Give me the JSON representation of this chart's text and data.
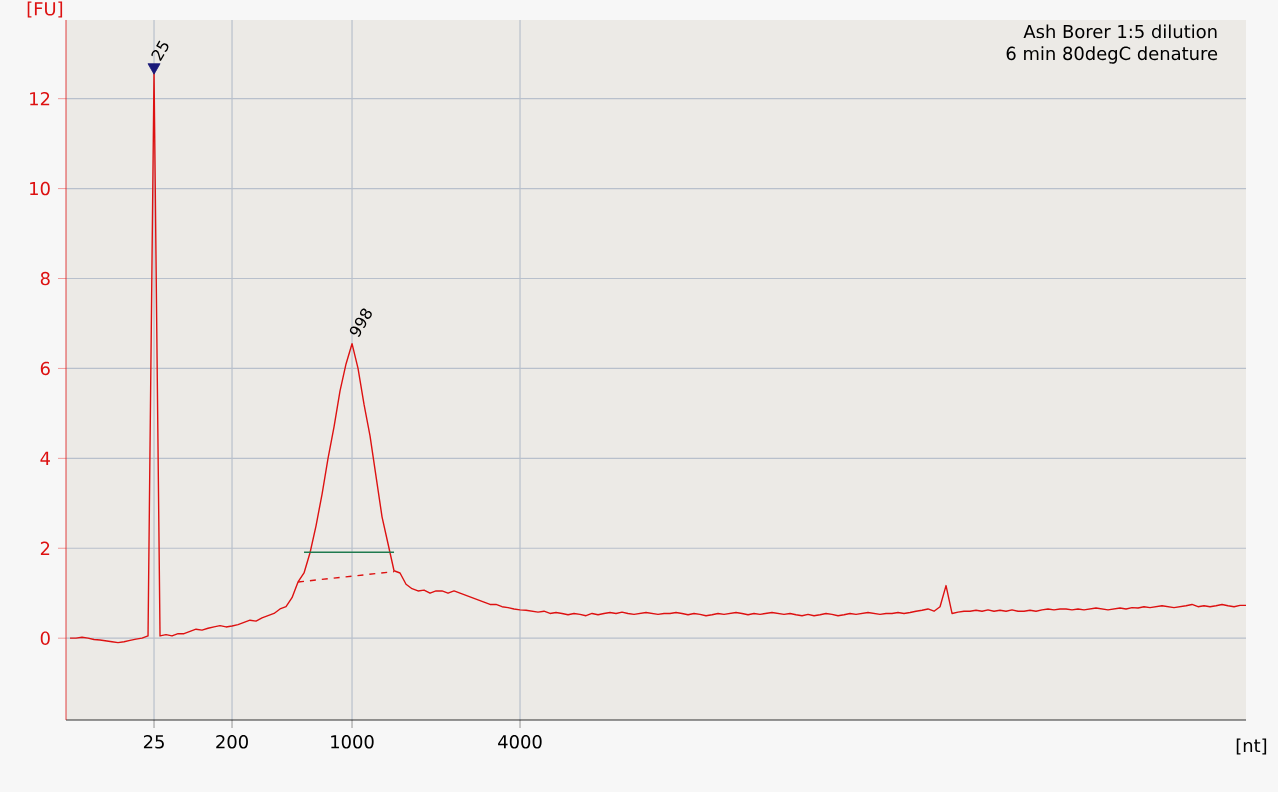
{
  "chart_data": {
    "type": "line",
    "title": "Ash Borer 1:5 dilution",
    "subtitle": "6 min 80degC denature",
    "xlabel": "[nt]",
    "ylabel": "[FU]",
    "categories": [
      null,
      null,
      null,
      null,
      null,
      null,
      null,
      null,
      null,
      null,
      null,
      null,
      null,
      null,
      "25",
      null,
      null,
      null,
      null,
      null,
      null,
      null,
      null,
      null,
      null,
      null,
      null,
      "200",
      null,
      null,
      null,
      null,
      null,
      null,
      null,
      null,
      null,
      null,
      null,
      null,
      null,
      null,
      null,
      null,
      null,
      null,
      null,
      "1000",
      null,
      null,
      null,
      null,
      null,
      null,
      null,
      null,
      null,
      null,
      null,
      null,
      null,
      null,
      null,
      null,
      null,
      null,
      null,
      null,
      null,
      null,
      null,
      null,
      null,
      null,
      null,
      "4000",
      null,
      null,
      null,
      null,
      null,
      null,
      null,
      null,
      null,
      null,
      null,
      null,
      null,
      null,
      null,
      null,
      null,
      null,
      null,
      null,
      null,
      null,
      null,
      null,
      null,
      null,
      null,
      null,
      null,
      null,
      null,
      null,
      null,
      null,
      null,
      null,
      null,
      null,
      null,
      null,
      null,
      null,
      null,
      null,
      null,
      null,
      null,
      null,
      null,
      null,
      null,
      null,
      null,
      null,
      null,
      null,
      null,
      null,
      null,
      null,
      null,
      null,
      null,
      null,
      null,
      null,
      null,
      null,
      null,
      null,
      null,
      null,
      null,
      null,
      null,
      null,
      null,
      null,
      null,
      null,
      null,
      null,
      null,
      null,
      null,
      null,
      null,
      null,
      null,
      null,
      null,
      null,
      null,
      null,
      null,
      null,
      null,
      null,
      null,
      null,
      null,
      null,
      null,
      null,
      null,
      null,
      null,
      null,
      null,
      null,
      null,
      null,
      null,
      null,
      null,
      null,
      null,
      null,
      null,
      null,
      null
    ],
    "ylim": [
      -1.82,
      13.75
    ],
    "yticks": [
      0,
      2,
      4,
      6,
      8,
      10,
      12
    ],
    "grid": true,
    "series": [
      {
        "color": "#dd1111",
        "values": [
          0,
          0,
          0.02,
          0,
          -0.03,
          -0.04,
          -0.06,
          -0.08,
          -0.1,
          -0.08,
          -0.05,
          -0.02,
          0,
          0.05,
          12.6,
          0.05,
          0.08,
          0.05,
          0.1,
          0.1,
          0.15,
          0.2,
          0.18,
          0.22,
          0.25,
          0.28,
          0.25,
          0.27,
          0.3,
          0.35,
          0.4,
          0.38,
          0.45,
          0.5,
          0.55,
          0.65,
          0.7,
          0.9,
          1.25,
          1.45,
          1.9,
          2.5,
          3.2,
          4.0,
          4.7,
          5.5,
          6.1,
          6.55,
          6.0,
          5.2,
          4.5,
          3.6,
          2.7,
          2.1,
          1.5,
          1.45,
          1.2,
          1.1,
          1.05,
          1.07,
          1.0,
          1.05,
          1.05,
          1.0,
          1.05,
          1.0,
          0.95,
          0.9,
          0.85,
          0.8,
          0.75,
          0.75,
          0.7,
          0.68,
          0.65,
          0.63,
          0.62,
          0.6,
          0.58,
          0.6,
          0.55,
          0.57,
          0.55,
          0.52,
          0.55,
          0.53,
          0.5,
          0.55,
          0.52,
          0.55,
          0.57,
          0.55,
          0.58,
          0.55,
          0.53,
          0.55,
          0.57,
          0.55,
          0.53,
          0.55,
          0.55,
          0.57,
          0.55,
          0.52,
          0.55,
          0.53,
          0.5,
          0.52,
          0.55,
          0.53,
          0.55,
          0.57,
          0.55,
          0.52,
          0.55,
          0.53,
          0.55,
          0.57,
          0.55,
          0.53,
          0.55,
          0.52,
          0.5,
          0.53,
          0.5,
          0.52,
          0.55,
          0.53,
          0.5,
          0.52,
          0.55,
          0.53,
          0.55,
          0.57,
          0.55,
          0.53,
          0.55,
          0.55,
          0.57,
          0.55,
          0.57,
          0.6,
          0.62,
          0.65,
          0.6,
          0.7,
          1.17,
          0.55,
          0.58,
          0.6,
          0.6,
          0.62,
          0.6,
          0.63,
          0.6,
          0.62,
          0.6,
          0.63,
          0.6,
          0.6,
          0.62,
          0.6,
          0.63,
          0.65,
          0.63,
          0.65,
          0.65,
          0.63,
          0.65,
          0.63,
          0.65,
          0.67,
          0.65,
          0.63,
          0.65,
          0.67,
          0.65,
          0.68,
          0.67,
          0.7,
          0.68,
          0.7,
          0.72,
          0.7,
          0.68,
          0.7,
          0.72,
          0.75,
          0.7,
          0.72,
          0.7,
          0.72,
          0.75,
          0.72,
          0.7,
          0.73,
          0.73
        ]
      },
      {
        "color": "#1f7a4f",
        "values": [
          null,
          null,
          null,
          null,
          null,
          null,
          null,
          null,
          null,
          null,
          null,
          null,
          null,
          null,
          null,
          null,
          null,
          null,
          null,
          null,
          null,
          null,
          null,
          null,
          null,
          null,
          null,
          null,
          null,
          null,
          null,
          null,
          null,
          null,
          null,
          null,
          null,
          null,
          null,
          1.91,
          null,
          null,
          null,
          null,
          null,
          null,
          null,
          null,
          null,
          null,
          null,
          null,
          null,
          null,
          1.91,
          null,
          null,
          null,
          null,
          null,
          null,
          null,
          null,
          null,
          null,
          null,
          null,
          null,
          null,
          null,
          null,
          null,
          null,
          null,
          null,
          null,
          null,
          null,
          null,
          null,
          null,
          null,
          null,
          null,
          null,
          null,
          null,
          null,
          null,
          null,
          null,
          null,
          null,
          null,
          null,
          null,
          null,
          null,
          null,
          null,
          null,
          null,
          null,
          null,
          null,
          null,
          null,
          null,
          null,
          null,
          null,
          null,
          null,
          null,
          null,
          null,
          null,
          null,
          null,
          null,
          null,
          null,
          null,
          null,
          null,
          null,
          null,
          null,
          null,
          null,
          null,
          null,
          null,
          null,
          null,
          null,
          null,
          null,
          null,
          null,
          null,
          null,
          null,
          null,
          null,
          null,
          null,
          null,
          null,
          null,
          null,
          null,
          null,
          null,
          null,
          null,
          null,
          null,
          null,
          null,
          null,
          null,
          null,
          null,
          null,
          null,
          null,
          null,
          null,
          null,
          null,
          null,
          null,
          null,
          null,
          null,
          null,
          null,
          null,
          null,
          null,
          null,
          null,
          null,
          null,
          null,
          null,
          null,
          null,
          null,
          null,
          null,
          null,
          null,
          null,
          null,
          null
        ]
      },
      {
        "color": "#dd1111",
        "line_style": "dashed",
        "values": [
          null,
          null,
          null,
          null,
          null,
          null,
          null,
          null,
          null,
          null,
          null,
          null,
          null,
          null,
          null,
          null,
          null,
          null,
          null,
          null,
          null,
          null,
          null,
          null,
          null,
          null,
          null,
          null,
          null,
          null,
          null,
          null,
          null,
          null,
          null,
          null,
          null,
          null,
          1.25,
          null,
          null,
          null,
          null,
          null,
          null,
          null,
          null,
          null,
          null,
          null,
          null,
          null,
          null,
          null,
          1.48,
          null,
          null,
          null,
          null,
          null,
          null,
          null,
          null,
          null,
          null,
          null,
          null,
          null,
          null,
          null,
          null,
          null,
          null,
          null,
          null,
          null,
          null,
          null,
          null,
          null,
          null,
          null,
          null,
          null,
          null,
          null,
          null,
          null,
          null,
          null,
          null,
          null,
          null,
          null,
          null,
          null,
          null,
          null,
          null,
          null,
          null,
          null,
          null,
          null,
          null,
          null,
          null,
          null,
          null,
          null,
          null,
          null,
          null,
          null,
          null,
          null,
          null,
          null,
          null,
          null,
          null,
          null,
          null,
          null,
          null,
          null,
          null,
          null,
          null,
          null,
          null,
          null,
          null,
          null,
          null,
          null,
          null,
          null,
          null,
          null,
          null,
          null,
          null,
          null,
          null,
          null,
          null,
          null,
          null,
          null,
          null,
          null,
          null,
          null,
          null,
          null,
          null,
          null,
          null,
          null,
          null,
          null,
          null,
          null,
          null,
          null,
          null,
          null,
          null,
          null,
          null,
          null,
          null,
          null,
          null,
          null,
          null,
          null,
          null,
          null,
          null,
          null,
          null,
          null,
          null,
          null,
          null,
          null,
          null,
          null,
          null,
          null,
          null,
          null,
          null,
          null,
          null
        ]
      },
      {
        "type": "scatter",
        "marker": "triangle",
        "color": "#1a1a7a",
        "x": [
          "25"
        ],
        "values": [
          12.7
        ]
      }
    ],
    "annotations": [
      {
        "text": "25",
        "x": "25",
        "y": 12.7
      },
      {
        "text": "998",
        "x": "1000",
        "y": 6.55
      }
    ]
  }
}
